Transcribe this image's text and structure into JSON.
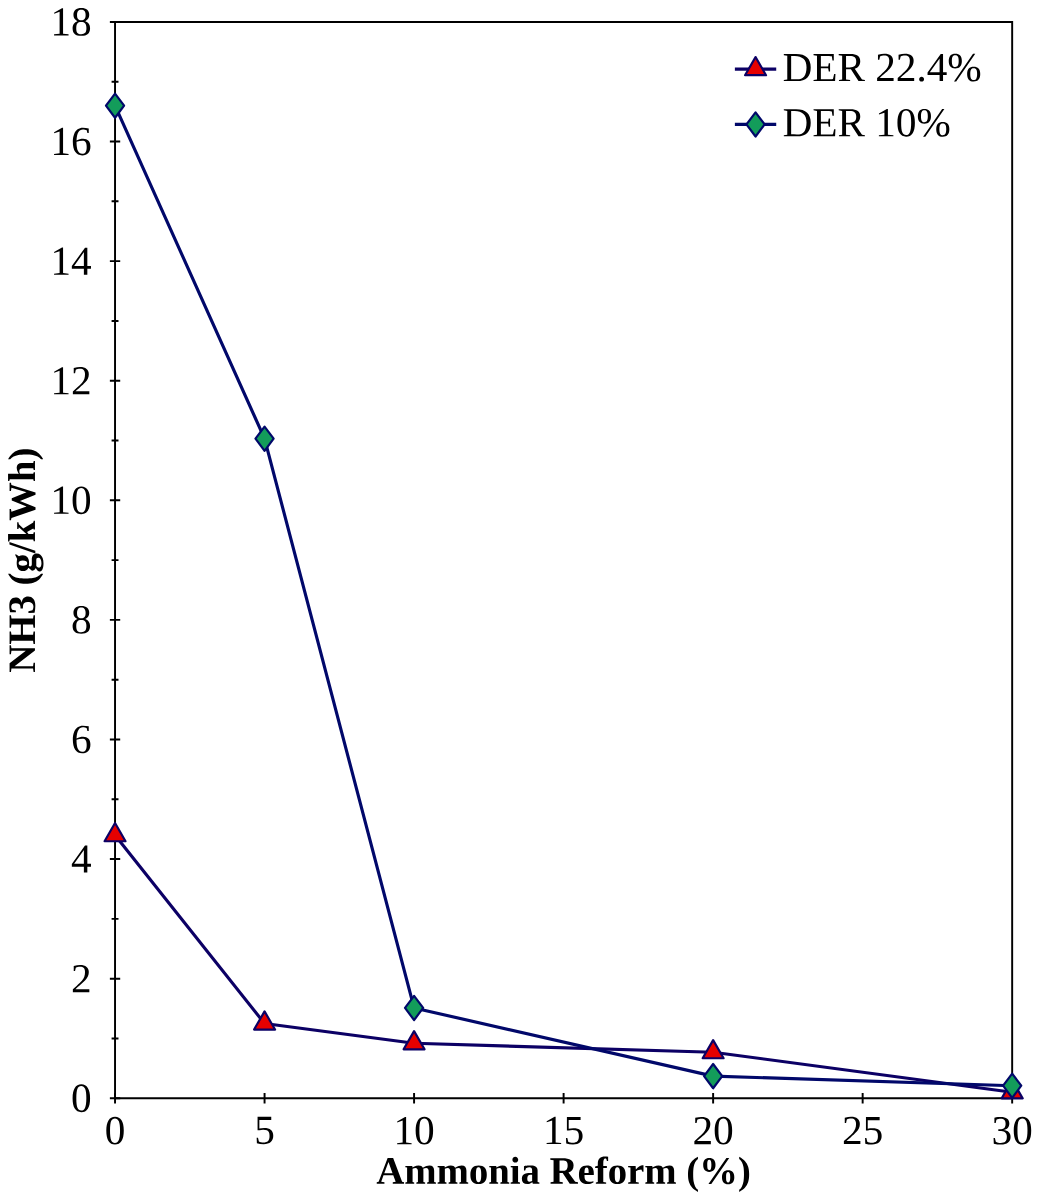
{
  "chart_data": {
    "type": "line",
    "xlabel": "Ammonia Reform (%)",
    "ylabel": "NH3 (g/kWh)",
    "x": [
      0,
      5,
      10,
      20,
      30
    ],
    "series": [
      {
        "name": "DER 22.4%",
        "color": "#e60000",
        "marker": "triangle",
        "values": [
          4.4,
          1.25,
          0.92,
          0.77,
          0.1
        ]
      },
      {
        "name": "DER 10%",
        "color": "#139c5a",
        "marker": "diamond",
        "values": [
          16.6,
          11.03,
          1.51,
          0.37,
          0.21
        ]
      }
    ],
    "xlim": [
      0,
      30
    ],
    "ylim": [
      0,
      18
    ],
    "xticks": [
      0,
      5,
      10,
      15,
      20,
      25,
      30
    ],
    "yticks": [
      0,
      2,
      4,
      6,
      8,
      10,
      12,
      14,
      16,
      18
    ],
    "grid": false,
    "legend": "top right"
  }
}
